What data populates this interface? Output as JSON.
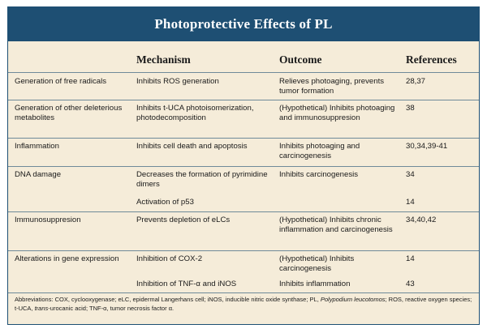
{
  "title": "Photoprotective Effects of PL",
  "columns": {
    "mechanism": "Mechanism",
    "outcome": "Outcome",
    "references": "References"
  },
  "rows": [
    {
      "category": "Generation of free radicals",
      "mechanism": "Inhibits ROS generation",
      "outcome": "Relieves photoaging, prevents tumor formation",
      "references": "28,37"
    },
    {
      "category": "Generation of other deleterious metabolites",
      "mechanism": "Inhibits t-UCA photoisomerization, photodecomposition",
      "outcome": "(Hypothetical) Inhibits photoaging and immunosuppresion",
      "references": "38"
    },
    {
      "category": "Inflammation",
      "mechanism": "Inhibits cell death and apoptosis",
      "outcome": "Inhibits photoaging and carcinogenesis",
      "references": "30,34,39-41"
    },
    {
      "category": "DNA damage",
      "mechanism": "Decreases the formation of pyrimidine dimers",
      "outcome": "Inhibits carcinogenesis",
      "references": "34"
    },
    {
      "category": "",
      "mechanism": "Activation of p53",
      "outcome": "",
      "references": "14"
    },
    {
      "category": "Immunosuppresion",
      "mechanism": "Prevents depletion of eLCs",
      "outcome": "(Hypothetical) Inhibits chronic inflammation and carcinogenesis",
      "references": "34,40,42"
    },
    {
      "category": "Alterations in gene expression",
      "mechanism": "Inhibition of COX-2",
      "outcome": "(Hypothetical) Inhibits carcinogenesis",
      "references": "14"
    },
    {
      "category": "",
      "mechanism": "Inhibition of TNF-α and iNOS",
      "outcome": "Inhibits inflammation",
      "references": "43"
    }
  ],
  "footnote": {
    "part1": "Abbreviations: COX, cyclooxygenase; eLC, epidermal Langerhans cell; iNOS, inducible nitric oxide synthase; PL, ",
    "species": "Polypodium leucotomos",
    "part2": "; ROS, reactive oxygen species; t-UCA, ",
    "trans": "trans",
    "part3": "-urocanic acid; TNF-α, tumor necrosis factor α."
  }
}
